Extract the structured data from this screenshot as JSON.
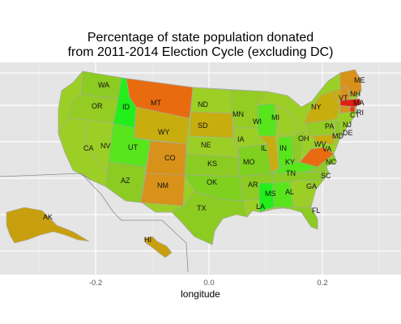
{
  "chart_data": {
    "type": "choropleth",
    "title": "Percentage of state population donated",
    "subtitle": "from 2011-2014 Election Cycle (excluding DC)",
    "xlabel": "longitude",
    "x_ticks": [
      "-0.2",
      "0.0",
      "0.2"
    ],
    "xlim": [
      -0.38,
      0.31
    ],
    "grid": true,
    "legend": "none",
    "colors": {
      "panel": "#e5e5e5",
      "grid": "#ffffff",
      "land_low": "#9ccf25",
      "state_border": "#a8a8a8",
      "inset_border": "#8c8c8c"
    },
    "states": [
      {
        "abbr": "WA",
        "color": "#8ccb22"
      },
      {
        "abbr": "OR",
        "color": "#94cc24"
      },
      {
        "abbr": "CA",
        "color": "#9ccf25"
      },
      {
        "abbr": "NV",
        "color": "#9ccf25"
      },
      {
        "abbr": "ID",
        "color": "#22ef1a"
      },
      {
        "abbr": "MT",
        "color": "#e96b10"
      },
      {
        "abbr": "WY",
        "color": "#c8ad0f"
      },
      {
        "abbr": "UT",
        "color": "#58e51c"
      },
      {
        "abbr": "AZ",
        "color": "#8ccb22"
      },
      {
        "abbr": "CO",
        "color": "#d8921a"
      },
      {
        "abbr": "NM",
        "color": "#d8921a"
      },
      {
        "abbr": "ND",
        "color": "#9cd024"
      },
      {
        "abbr": "SD",
        "color": "#c8ad0f"
      },
      {
        "abbr": "NE",
        "color": "#9ccf25"
      },
      {
        "abbr": "KS",
        "color": "#8ccb22"
      },
      {
        "abbr": "OK",
        "color": "#7fd01f"
      },
      {
        "abbr": "TX",
        "color": "#8ccb22"
      },
      {
        "abbr": "MN",
        "color": "#94cc24"
      },
      {
        "abbr": "IA",
        "color": "#9ccf25"
      },
      {
        "abbr": "MO",
        "color": "#7fd01f"
      },
      {
        "abbr": "AR",
        "color": "#8ccb22"
      },
      {
        "abbr": "LA",
        "color": "#9ccf25"
      },
      {
        "abbr": "WI",
        "color": "#58e51c"
      },
      {
        "abbr": "IL",
        "color": "#c8ad0f"
      },
      {
        "abbr": "MI",
        "color": "#9ccf25"
      },
      {
        "abbr": "IN",
        "color": "#58e51c"
      },
      {
        "abbr": "OH",
        "color": "#8ccb22"
      },
      {
        "abbr": "KY",
        "color": "#58e51c"
      },
      {
        "abbr": "TN",
        "color": "#8ccb22"
      },
      {
        "abbr": "MS",
        "color": "#22ef1a"
      },
      {
        "abbr": "AL",
        "color": "#58e51c"
      },
      {
        "abbr": "GA",
        "color": "#9ccf25"
      },
      {
        "abbr": "FL",
        "color": "#8ccb22"
      },
      {
        "abbr": "SC",
        "color": "#94cc24"
      },
      {
        "abbr": "NC",
        "color": "#8ccb22"
      },
      {
        "abbr": "VA",
        "color": "#e96b10"
      },
      {
        "abbr": "WV",
        "color": "#9ccf25"
      },
      {
        "abbr": "PA",
        "color": "#94cc24"
      },
      {
        "abbr": "NY",
        "color": "#c8ad0f"
      },
      {
        "abbr": "NJ",
        "color": "#8ccb22"
      },
      {
        "abbr": "DE",
        "color": "#9ccf25"
      },
      {
        "abbr": "MD",
        "color": "#c8ad0f"
      },
      {
        "abbr": "CT",
        "color": "#d8921a"
      },
      {
        "abbr": "RI",
        "color": "#e03a10"
      },
      {
        "abbr": "MA",
        "color": "#e02010"
      },
      {
        "abbr": "VT",
        "color": "#c8ad0f"
      },
      {
        "abbr": "NH",
        "color": "#d8921a"
      },
      {
        "abbr": "ME",
        "color": "#d8921a"
      },
      {
        "abbr": "AK",
        "color": "#c8a00f"
      },
      {
        "abbr": "HI",
        "color": "#c8a00f"
      }
    ]
  }
}
